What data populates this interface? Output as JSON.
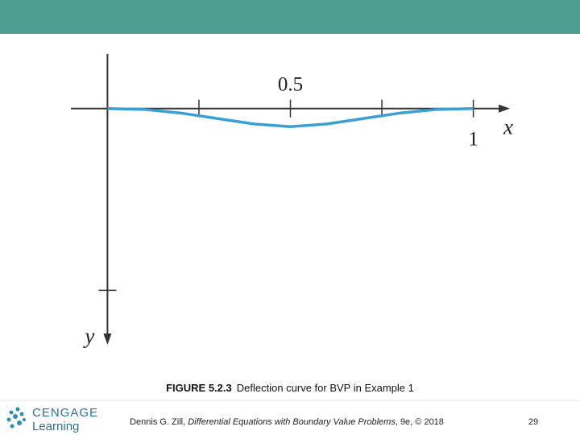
{
  "chart_data": {
    "type": "line",
    "x": [
      0,
      0.1,
      0.2,
      0.3,
      0.4,
      0.5,
      0.6,
      0.7,
      0.8,
      0.9,
      1
    ],
    "series": [
      {
        "color": "#3a9fd2",
        "values": [
          0,
          0.005,
          0.025,
          0.055,
          0.085,
          0.1,
          0.085,
          0.055,
          0.025,
          0.005,
          0
        ]
      }
    ],
    "xlim": [
      -0.1,
      1.1
    ],
    "ylim": [
      -0.3,
      1.3
    ],
    "y_inverted": true,
    "xticks": [
      {
        "value": 0.25,
        "label": null
      },
      0.5,
      {
        "value": 0.75,
        "label": null
      },
      1
    ],
    "yticks": [
      {
        "value": 1,
        "label": null
      }
    ],
    "xlabel": "x",
    "ylabel": "y"
  },
  "caption": {
    "label": "FIGURE 5.2.3",
    "text": "Deflection curve for BVP in Example 1"
  },
  "footer": {
    "brand": "CENGAGE",
    "brand_sub": "Learning",
    "citation_start": "Dennis G. Zill, ",
    "citation_title": "Differential Equations with Boundary Value Problems",
    "citation_end": ", 9e, © 2018",
    "page": "29"
  }
}
